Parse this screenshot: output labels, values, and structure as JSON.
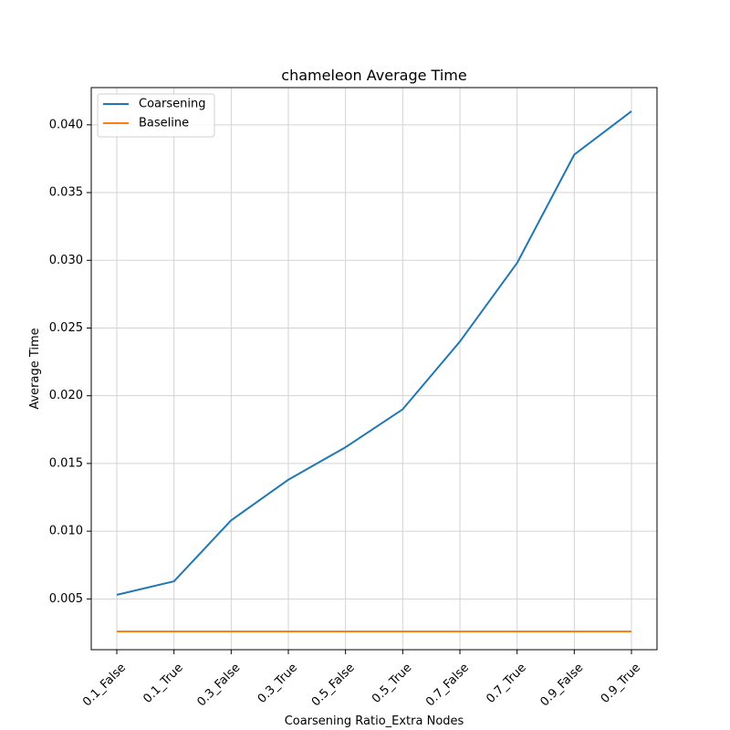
{
  "chart_data": {
    "type": "line",
    "title": "chameleon Average Time",
    "xlabel": "Coarsening Ratio_Extra Nodes",
    "ylabel": "Average Time",
    "categories": [
      "0.1_False",
      "0.1_True",
      "0.3_False",
      "0.3_True",
      "0.5_False",
      "0.5_True",
      "0.7_False",
      "0.7_True",
      "0.9_False",
      "0.9_True"
    ],
    "yticks": [
      "0.005",
      "0.010",
      "0.015",
      "0.020",
      "0.025",
      "0.030",
      "0.035",
      "0.040"
    ],
    "ylim": [
      0.00125,
      0.04275
    ],
    "grid": true,
    "legend_position": "top-left",
    "series": [
      {
        "name": "Coarsening",
        "color": "#1f77b4",
        "values": [
          0.0053,
          0.0063,
          0.0108,
          0.0138,
          0.0162,
          0.019,
          0.024,
          0.0298,
          0.0378,
          0.041
        ]
      },
      {
        "name": "Baseline",
        "color": "#ff7f0e",
        "values": [
          0.0026,
          0.0026,
          0.0026,
          0.0026,
          0.0026,
          0.0026,
          0.0026,
          0.0026,
          0.0026,
          0.0026
        ]
      }
    ]
  }
}
